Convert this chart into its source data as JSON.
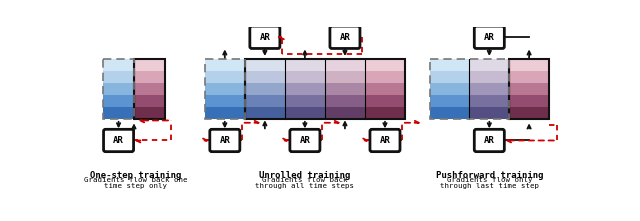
{
  "panels": [
    {
      "name": "One-step training",
      "subtitle1": "Gradients flow back one",
      "subtitle2": "time step only"
    },
    {
      "name": "Unrolled training",
      "subtitle1": "Gradients flow back",
      "subtitle2": "through all time steps"
    },
    {
      "name": "Pushforward training",
      "subtitle1": "Gradients flow only",
      "subtitle2": "through last time step"
    }
  ],
  "colors": {
    "bg": "#FFFFFF",
    "arrow_black": "#111111",
    "arrow_red": "#CC0000",
    "ar_fill": "#FFFFFF",
    "border": "#222222",
    "dashed_border": "#888888"
  },
  "grid_colors": {
    "blue_rows": [
      [
        0.82,
        0.9,
        0.96
      ],
      [
        0.7,
        0.82,
        0.92
      ],
      [
        0.53,
        0.71,
        0.87
      ],
      [
        0.36,
        0.58,
        0.82
      ],
      [
        0.22,
        0.44,
        0.72
      ]
    ],
    "pink_rows": [
      [
        0.93,
        0.8,
        0.84
      ],
      [
        0.85,
        0.65,
        0.72
      ],
      [
        0.72,
        0.47,
        0.58
      ],
      [
        0.58,
        0.3,
        0.43
      ],
      [
        0.44,
        0.18,
        0.3
      ]
    ]
  }
}
